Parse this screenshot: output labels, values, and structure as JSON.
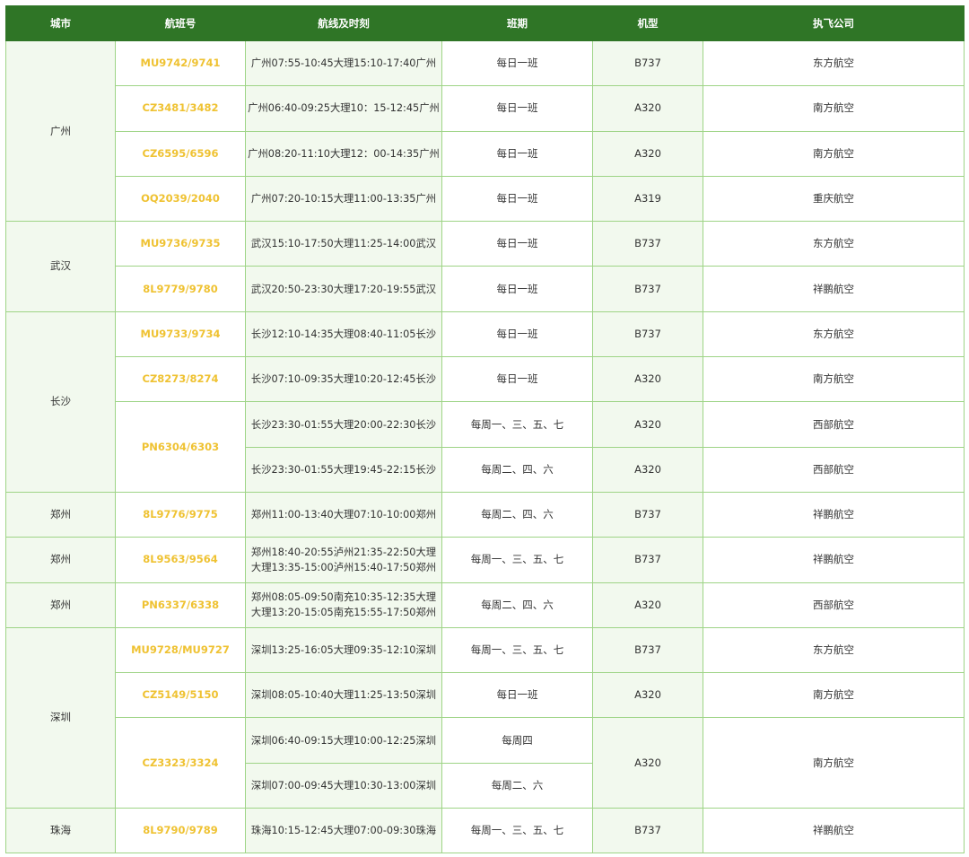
{
  "headers": [
    "城市",
    "航班号",
    "航线及时刻",
    "班期",
    "机型",
    "执飞公司"
  ],
  "groups": [
    {
      "city": "广州",
      "flights": [
        {
          "no": "MU9742/9741",
          "legs": [
            {
              "route": "广州07:55-10:45大理15:10-17:40广州",
              "schedule": "每日一班",
              "aircraft": "B737",
              "airline": "东方航空"
            }
          ]
        },
        {
          "no": "CZ3481/3482",
          "legs": [
            {
              "route": "广州06:40-09:25大理10：15-12:45广州",
              "schedule": "每日一班",
              "aircraft": "A320",
              "airline": "南方航空"
            }
          ]
        },
        {
          "no": "CZ6595/6596",
          "legs": [
            {
              "route": "广州08:20-11:10大理12：00-14:35广州",
              "schedule": "每日一班",
              "aircraft": "A320",
              "airline": "南方航空"
            }
          ]
        },
        {
          "no": "OQ2039/2040",
          "legs": [
            {
              "route": "广州07:20-10:15大理11:00-13:35广州",
              "schedule": "每日一班",
              "aircraft": "A319",
              "airline": "重庆航空"
            }
          ]
        }
      ]
    },
    {
      "city": "武汉",
      "flights": [
        {
          "no": "MU9736/9735",
          "legs": [
            {
              "route": "武汉15:10-17:50大理11:25-14:00武汉",
              "schedule": "每日一班",
              "aircraft": "B737",
              "airline": "东方航空"
            }
          ]
        },
        {
          "no": "8L9779/9780",
          "legs": [
            {
              "route": "武汉20:50-23:30大理17:20-19:55武汉",
              "schedule": "每日一班",
              "aircraft": "B737",
              "airline": "祥鹏航空"
            }
          ]
        }
      ]
    },
    {
      "city": "长沙",
      "flights": [
        {
          "no": "MU9733/9734",
          "legs": [
            {
              "route": "长沙12:10-14:35大理08:40-11:05长沙",
              "schedule": "每日一班",
              "aircraft": "B737",
              "airline": "东方航空"
            }
          ]
        },
        {
          "no": "CZ8273/8274",
          "legs": [
            {
              "route": "长沙07:10-09:35大理10:20-12:45长沙",
              "schedule": "每日一班",
              "aircraft": "A320",
              "airline": "南方航空"
            }
          ]
        },
        {
          "no": "PN6304/6303",
          "legs": [
            {
              "route": "长沙23:30-01:55大理20:00-22:30长沙",
              "schedule": "每周一、三、五、七",
              "aircraft": "A320",
              "airline": "西部航空"
            },
            {
              "route": "长沙23:30-01:55大理19:45-22:15长沙",
              "schedule": "每周二、四、六",
              "aircraft": "A320",
              "airline": "西部航空"
            }
          ]
        }
      ]
    },
    {
      "city": "郑州",
      "flights": [
        {
          "no": "8L9776/9775",
          "legs": [
            {
              "route": "郑州11:00-13:40大理07:10-10:00郑州",
              "schedule": "每周二、四、六",
              "aircraft": "B737",
              "airline": "祥鹏航空"
            }
          ]
        }
      ]
    },
    {
      "city": "郑州",
      "flights": [
        {
          "no": "8L9563/9564",
          "legs": [
            {
              "route": "郑州18:40-20:55泸州21:35-22:50大理\n大理13:35-15:00泸州15:40-17:50郑州",
              "schedule": "每周一、三、五、七",
              "aircraft": "B737",
              "airline": "祥鹏航空"
            }
          ]
        }
      ]
    },
    {
      "city": "郑州",
      "flights": [
        {
          "no": "PN6337/6338",
          "legs": [
            {
              "route": "郑州08:05-09:50南充10:35-12:35大理\n大理13:20-15:05南充15:55-17:50郑州",
              "schedule": "每周二、四、六",
              "aircraft": "A320",
              "airline": "西部航空"
            }
          ]
        }
      ]
    },
    {
      "city": "深圳",
      "flights": [
        {
          "no": "MU9728/MU9727",
          "legs": [
            {
              "route": "深圳13:25-16:05大理09:35-12:10深圳",
              "schedule": "每周一、三、五、七",
              "aircraft": "B737",
              "airline": "东方航空"
            }
          ]
        },
        {
          "no": "CZ5149/5150",
          "legs": [
            {
              "route": "深圳08:05-10:40大理11:25-13:50深圳",
              "schedule": "每日一班",
              "aircraft": "A320",
              "airline": "南方航空"
            }
          ]
        },
        {
          "no": "CZ3323/3324",
          "aircraft": "A320",
          "airline": "南方航空",
          "legs": [
            {
              "route": "深圳06:40-09:15大理10:00-12:25深圳",
              "schedule": "每周四"
            },
            {
              "route": "深圳07:00-09:45大理10:30-13:00深圳",
              "schedule": "每周二、六"
            }
          ]
        }
      ]
    },
    {
      "city": "珠海",
      "flights": [
        {
          "no": "8L9790/9789",
          "legs": [
            {
              "route": "珠海10:15-12:45大理07:00-09:30珠海",
              "schedule": "每周一、三、五、七",
              "aircraft": "B737",
              "airline": "祥鹏航空"
            }
          ]
        }
      ]
    }
  ]
}
